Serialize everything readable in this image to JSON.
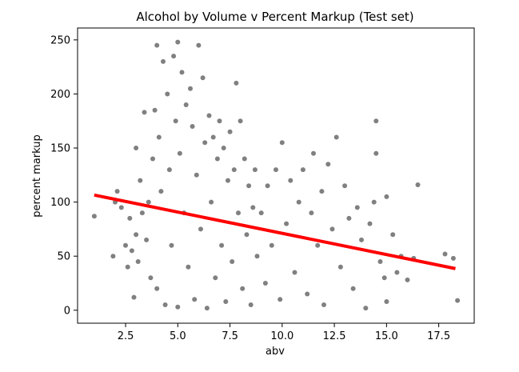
{
  "chart_data": {
    "type": "scatter",
    "title": "Alcohol by Volume v Percent Markup (Test set)",
    "xlabel": "abv",
    "ylabel": "percent markup",
    "xlim": [
      0.2,
      19.2
    ],
    "ylim": [
      -12,
      261
    ],
    "xticks": [
      2.5,
      5.0,
      7.5,
      10.0,
      12.5,
      15.0,
      17.5
    ],
    "xtick_labels": [
      "2.5",
      "5.0",
      "7.5",
      "10.0",
      "12.5",
      "15.0",
      "17.5"
    ],
    "yticks": [
      0,
      50,
      100,
      150,
      200,
      250
    ],
    "ytick_labels": [
      "0",
      "50",
      "100",
      "150",
      "200",
      "250"
    ],
    "grid": false,
    "colors": {
      "points": "#808080",
      "fit_line": "#ff0000"
    },
    "series": [
      {
        "kind": "scatter",
        "color": "#808080",
        "points": [
          [
            1.0,
            87
          ],
          [
            1.9,
            50
          ],
          [
            2.0,
            100
          ],
          [
            2.1,
            110
          ],
          [
            2.3,
            95
          ],
          [
            2.5,
            60
          ],
          [
            2.6,
            40
          ],
          [
            2.7,
            85
          ],
          [
            2.8,
            55
          ],
          [
            2.9,
            12
          ],
          [
            3.0,
            70
          ],
          [
            3.0,
            150
          ],
          [
            3.1,
            45
          ],
          [
            3.2,
            120
          ],
          [
            3.3,
            90
          ],
          [
            3.4,
            183
          ],
          [
            3.5,
            65
          ],
          [
            3.6,
            100
          ],
          [
            3.7,
            30
          ],
          [
            3.8,
            140
          ],
          [
            3.9,
            185
          ],
          [
            4.0,
            245
          ],
          [
            4.0,
            20
          ],
          [
            4.1,
            160
          ],
          [
            4.2,
            110
          ],
          [
            4.3,
            230
          ],
          [
            4.4,
            5
          ],
          [
            4.5,
            200
          ],
          [
            4.6,
            130
          ],
          [
            4.7,
            60
          ],
          [
            4.8,
            235
          ],
          [
            4.9,
            175
          ],
          [
            5.0,
            248
          ],
          [
            5.0,
            3
          ],
          [
            5.1,
            145
          ],
          [
            5.2,
            220
          ],
          [
            5.3,
            90
          ],
          [
            5.4,
            190
          ],
          [
            5.5,
            40
          ],
          [
            5.6,
            205
          ],
          [
            5.7,
            170
          ],
          [
            5.8,
            10
          ],
          [
            5.9,
            125
          ],
          [
            6.0,
            245
          ],
          [
            6.1,
            75
          ],
          [
            6.2,
            215
          ],
          [
            6.3,
            155
          ],
          [
            6.4,
            2
          ],
          [
            6.5,
            180
          ],
          [
            6.6,
            100
          ],
          [
            6.7,
            160
          ],
          [
            6.8,
            30
          ],
          [
            6.9,
            140
          ],
          [
            7.0,
            175
          ],
          [
            7.1,
            60
          ],
          [
            7.2,
            150
          ],
          [
            7.3,
            8
          ],
          [
            7.4,
            120
          ],
          [
            7.5,
            165
          ],
          [
            7.6,
            45
          ],
          [
            7.7,
            130
          ],
          [
            7.8,
            210
          ],
          [
            7.9,
            90
          ],
          [
            8.0,
            175
          ],
          [
            8.1,
            20
          ],
          [
            8.2,
            140
          ],
          [
            8.3,
            70
          ],
          [
            8.4,
            115
          ],
          [
            8.5,
            5
          ],
          [
            8.6,
            95
          ],
          [
            8.7,
            130
          ],
          [
            8.8,
            50
          ],
          [
            9.0,
            90
          ],
          [
            9.2,
            25
          ],
          [
            9.3,
            115
          ],
          [
            9.5,
            60
          ],
          [
            9.7,
            130
          ],
          [
            9.9,
            10
          ],
          [
            10.0,
            155
          ],
          [
            10.2,
            80
          ],
          [
            10.4,
            120
          ],
          [
            10.6,
            35
          ],
          [
            10.8,
            100
          ],
          [
            11.0,
            130
          ],
          [
            11.2,
            15
          ],
          [
            11.4,
            90
          ],
          [
            11.5,
            145
          ],
          [
            11.7,
            60
          ],
          [
            11.9,
            110
          ],
          [
            12.0,
            5
          ],
          [
            12.2,
            135
          ],
          [
            12.4,
            75
          ],
          [
            12.6,
            160
          ],
          [
            12.8,
            40
          ],
          [
            13.0,
            115
          ],
          [
            13.2,
            85
          ],
          [
            13.4,
            20
          ],
          [
            13.6,
            95
          ],
          [
            13.8,
            65
          ],
          [
            14.0,
            2
          ],
          [
            14.2,
            80
          ],
          [
            14.4,
            100
          ],
          [
            14.5,
            175
          ],
          [
            14.5,
            145
          ],
          [
            14.7,
            45
          ],
          [
            14.9,
            30
          ],
          [
            15.0,
            105
          ],
          [
            15.0,
            8
          ],
          [
            15.3,
            70
          ],
          [
            15.5,
            35
          ],
          [
            15.7,
            50
          ],
          [
            16.0,
            28
          ],
          [
            16.5,
            116
          ],
          [
            16.3,
            48
          ],
          [
            17.8,
            52
          ],
          [
            18.2,
            48
          ],
          [
            18.4,
            9
          ]
        ]
      },
      {
        "kind": "line",
        "color": "#ff0000",
        "points": [
          [
            1.0,
            106.5
          ],
          [
            18.3,
            38.5
          ]
        ]
      }
    ]
  }
}
